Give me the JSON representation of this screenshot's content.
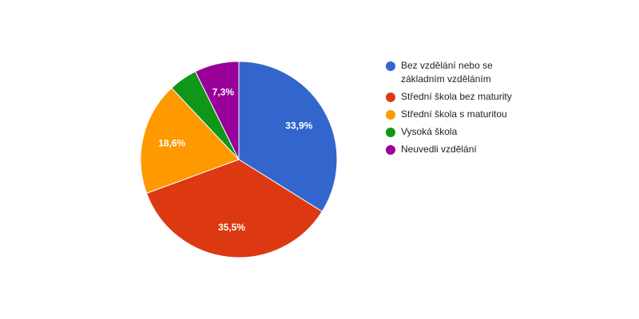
{
  "chart_data": {
    "type": "pie",
    "categories": [
      "Bez vzdělání nebo se základním vzděláním",
      "Střední škola bez maturity",
      "Střední škola s maturitou",
      "Vysoká škola",
      "Neuvedli vzdělání"
    ],
    "values": [
      33.9,
      35.5,
      18.6,
      4.7,
      7.3
    ],
    "value_labels": [
      "33,9%",
      "35,5%",
      "18,6%",
      null,
      "7,3%"
    ],
    "colors": [
      "#3366cc",
      "#dc3912",
      "#ff9900",
      "#109618",
      "#990099"
    ],
    "legend": "right"
  }
}
